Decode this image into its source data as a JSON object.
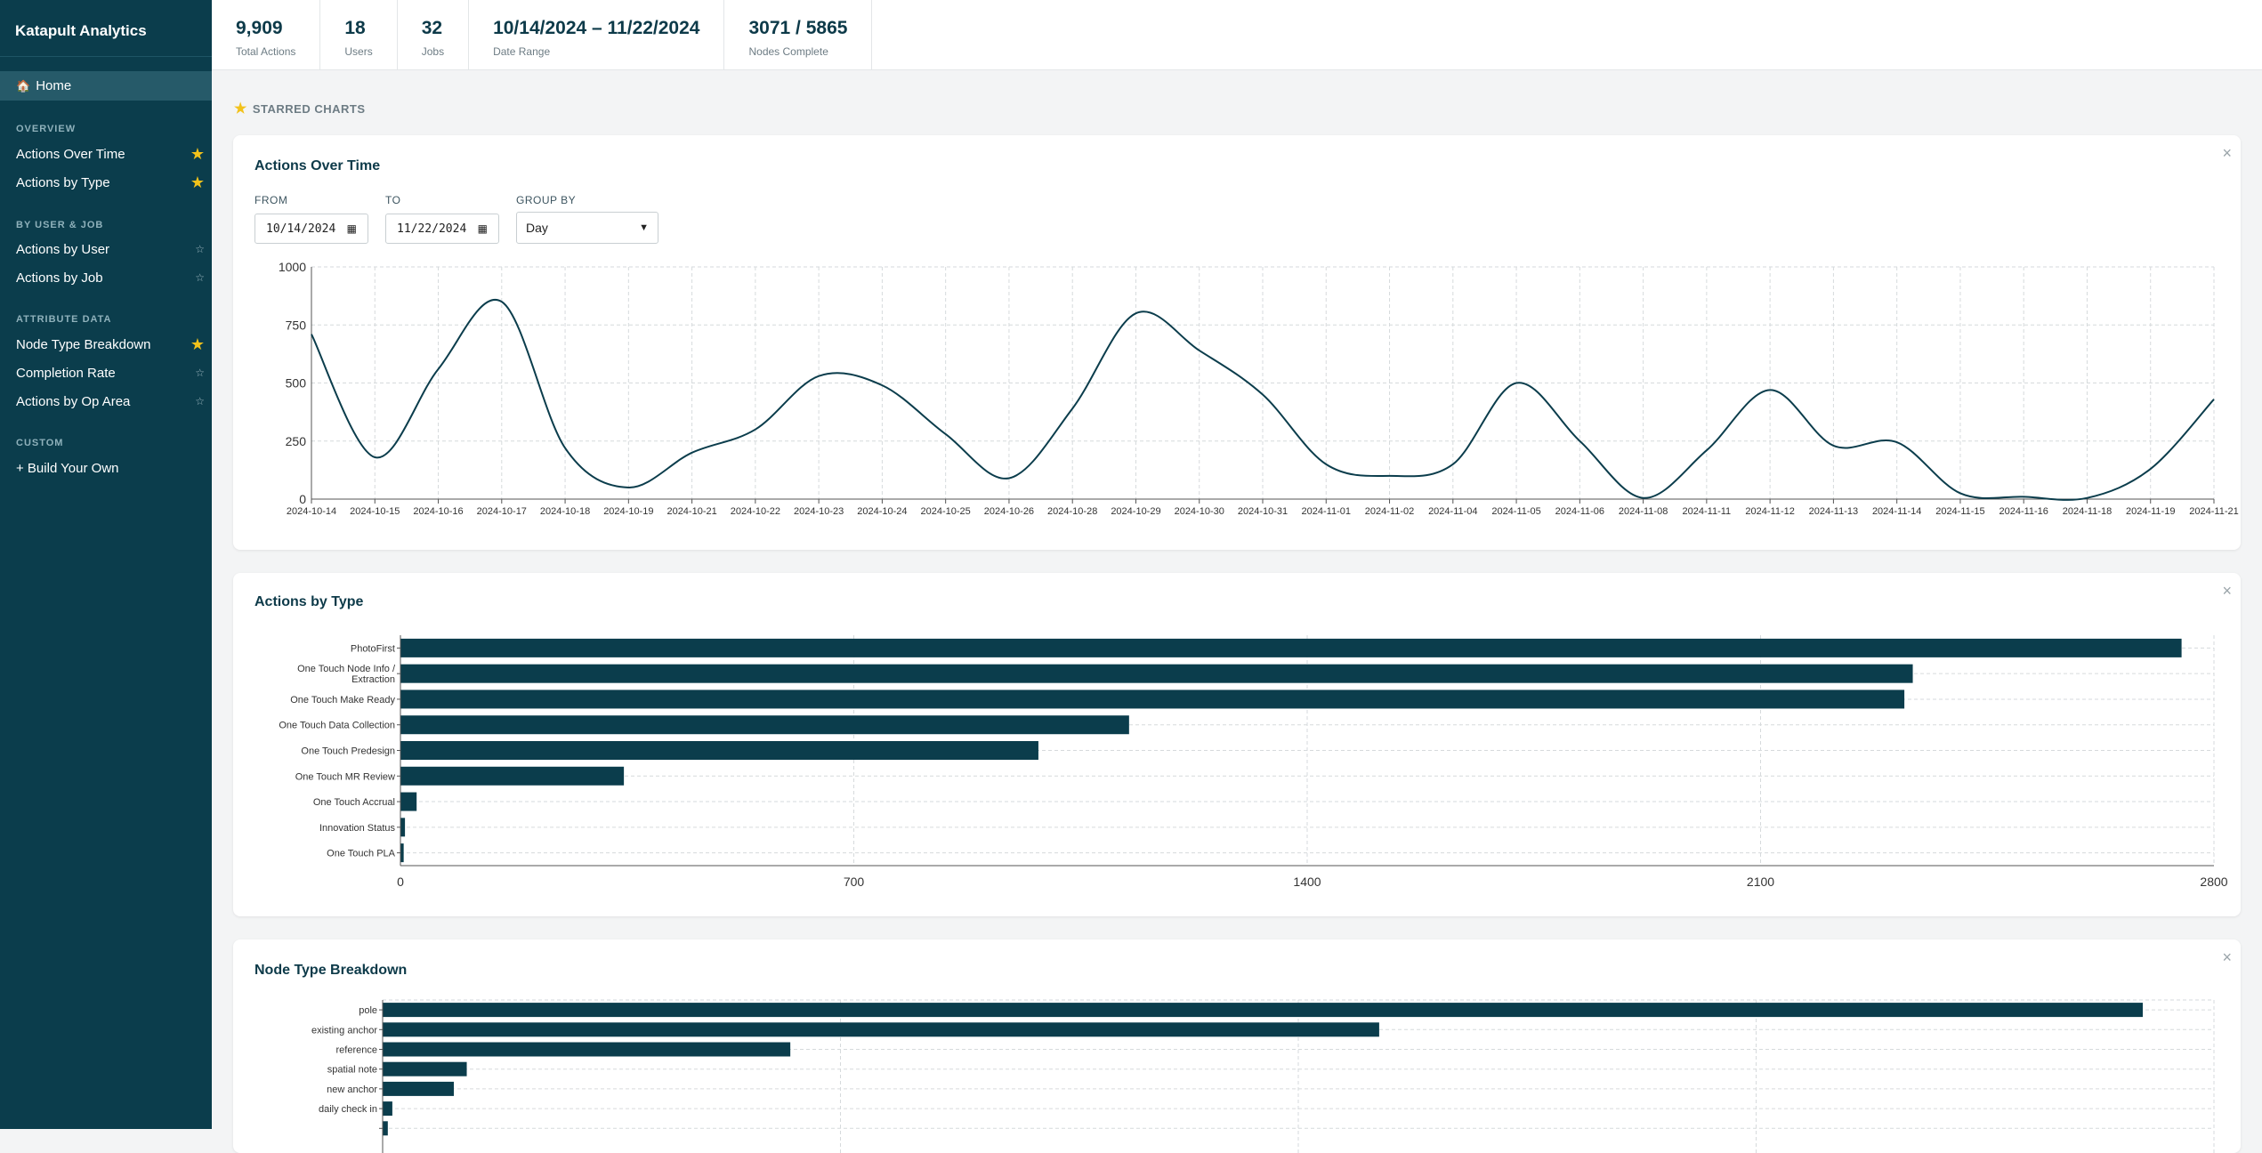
{
  "app": {
    "title": "Katapult Analytics"
  },
  "nav": {
    "home": "Home",
    "sections": [
      {
        "title": "OVERVIEW",
        "items": [
          {
            "label": "Actions Over Time",
            "starred": true
          },
          {
            "label": "Actions by Type",
            "starred": true
          }
        ]
      },
      {
        "title": "BY USER & JOB",
        "items": [
          {
            "label": "Actions by User",
            "starred": false
          },
          {
            "label": "Actions by Job",
            "starred": false
          }
        ]
      },
      {
        "title": "ATTRIBUTE DATA",
        "items": [
          {
            "label": "Node Type Breakdown",
            "starred": true
          },
          {
            "label": "Completion Rate",
            "starred": false
          },
          {
            "label": "Actions by Op Area",
            "starred": false
          }
        ]
      },
      {
        "title": "CUSTOM",
        "items": [
          {
            "label": "+ Build Your Own",
            "starred": null
          }
        ]
      }
    ]
  },
  "stats": [
    {
      "value": "9,909",
      "label": "Total Actions"
    },
    {
      "value": "18",
      "label": "Users"
    },
    {
      "value": "32",
      "label": "Jobs"
    },
    {
      "value": "10/14/2024 – 11/22/2024",
      "label": "Date Range"
    },
    {
      "value": "3071 / 5865",
      "label": "Nodes Complete"
    }
  ],
  "starred_title": "STARRED CHARTS",
  "card1": {
    "title": "Actions Over Time",
    "from_label": "FROM",
    "from_value": "10/14/2024",
    "to_label": "TO",
    "to_value": "11/22/2024",
    "group_label": "GROUP BY",
    "group_value": "Day"
  },
  "card2": {
    "title": "Actions by Type"
  },
  "card3": {
    "title": "Node Type Breakdown"
  },
  "icons": {
    "close": "×",
    "star": "★",
    "star_empty": "☆",
    "home": "🏠"
  },
  "colors": {
    "sidebar": "#0b3d4c",
    "series": "#0b3d4c",
    "accent_star": "#f2c21b"
  },
  "chart_data": [
    {
      "type": "line",
      "title": "Actions Over Time",
      "x": [
        "2024-10-14",
        "2024-10-15",
        "2024-10-16",
        "2024-10-17",
        "2024-10-18",
        "2024-10-19",
        "2024-10-21",
        "2024-10-22",
        "2024-10-23",
        "2024-10-24",
        "2024-10-25",
        "2024-10-26",
        "2024-10-28",
        "2024-10-29",
        "2024-10-30",
        "2024-10-31",
        "2024-11-01",
        "2024-11-02",
        "2024-11-04",
        "2024-11-05",
        "2024-11-06",
        "2024-11-08",
        "2024-11-11",
        "2024-11-12",
        "2024-11-13",
        "2024-11-14",
        "2024-11-15",
        "2024-11-16",
        "2024-11-18",
        "2024-11-19",
        "2024-11-21"
      ],
      "values": [
        710,
        180,
        560,
        850,
        220,
        50,
        200,
        300,
        530,
        490,
        280,
        90,
        390,
        800,
        640,
        450,
        150,
        100,
        150,
        500,
        250,
        5,
        210,
        470,
        230,
        245,
        25,
        10,
        5,
        130,
        430
      ],
      "ylim": [
        0,
        1000
      ],
      "yticks": [
        0,
        250,
        500,
        750,
        1000
      ],
      "grid": true
    },
    {
      "type": "bar",
      "orientation": "horizontal",
      "title": "Actions by Type",
      "categories": [
        "PhotoFirst",
        "One Touch Node Info / Extraction",
        "One Touch Make Ready",
        "One Touch Data Collection",
        "One Touch Predesign",
        "One Touch MR Review",
        "One Touch Accrual",
        "Innovation Status",
        "One Touch PLA"
      ],
      "category_lines": [
        [
          "PhotoFirst"
        ],
        [
          "One Touch Node Info /",
          "Extraction"
        ],
        [
          "One Touch Make Ready"
        ],
        [
          "One Touch Data Collection"
        ],
        [
          "One Touch Predesign"
        ],
        [
          "One Touch MR Review"
        ],
        [
          "One Touch Accrual"
        ],
        [
          "Innovation Status"
        ],
        [
          "One Touch PLA"
        ]
      ],
      "values": [
        2750,
        2335,
        2322,
        1125,
        985,
        345,
        25,
        7,
        5
      ],
      "xlim": [
        0,
        2800
      ],
      "xticks": [
        0,
        700,
        1400,
        2100,
        2800
      ],
      "grid": true
    },
    {
      "type": "bar",
      "orientation": "horizontal",
      "title": "Node Type Breakdown",
      "categories": [
        "pole",
        "existing anchor",
        "reference",
        "spatial note",
        "new anchor",
        "daily check in",
        ""
      ],
      "values": [
        2720,
        1540,
        630,
        130,
        110,
        15,
        8
      ],
      "xlim": [
        0,
        2830
      ],
      "grid": true
    }
  ]
}
